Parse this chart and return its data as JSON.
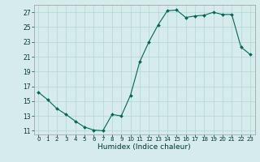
{
  "title": "",
  "xlabel": "Humidex (Indice chaleur)",
  "ylabel": "",
  "bg_color": "#d6ecec",
  "grid_color": "#b8d8d8",
  "line_color": "#006655",
  "marker_color": "#006655",
  "x_values": [
    0,
    1,
    2,
    3,
    4,
    5,
    6,
    7,
    8,
    9,
    10,
    11,
    12,
    13,
    14,
    15,
    16,
    17,
    18,
    19,
    20,
    21,
    22,
    23
  ],
  "y_values": [
    16.2,
    15.2,
    14.0,
    13.2,
    12.3,
    11.5,
    11.1,
    11.0,
    13.2,
    13.0,
    15.8,
    20.3,
    23.0,
    25.3,
    27.2,
    27.3,
    26.3,
    26.5,
    26.6,
    27.0,
    26.7,
    26.7,
    22.3,
    21.3
  ],
  "ylim": [
    10.5,
    28.0
  ],
  "yticks": [
    11,
    13,
    15,
    17,
    19,
    21,
    23,
    25,
    27
  ],
  "xlim": [
    -0.5,
    23.5
  ],
  "xticks": [
    0,
    1,
    2,
    3,
    4,
    5,
    6,
    7,
    8,
    9,
    10,
    11,
    12,
    13,
    14,
    15,
    16,
    17,
    18,
    19,
    20,
    21,
    22,
    23
  ]
}
